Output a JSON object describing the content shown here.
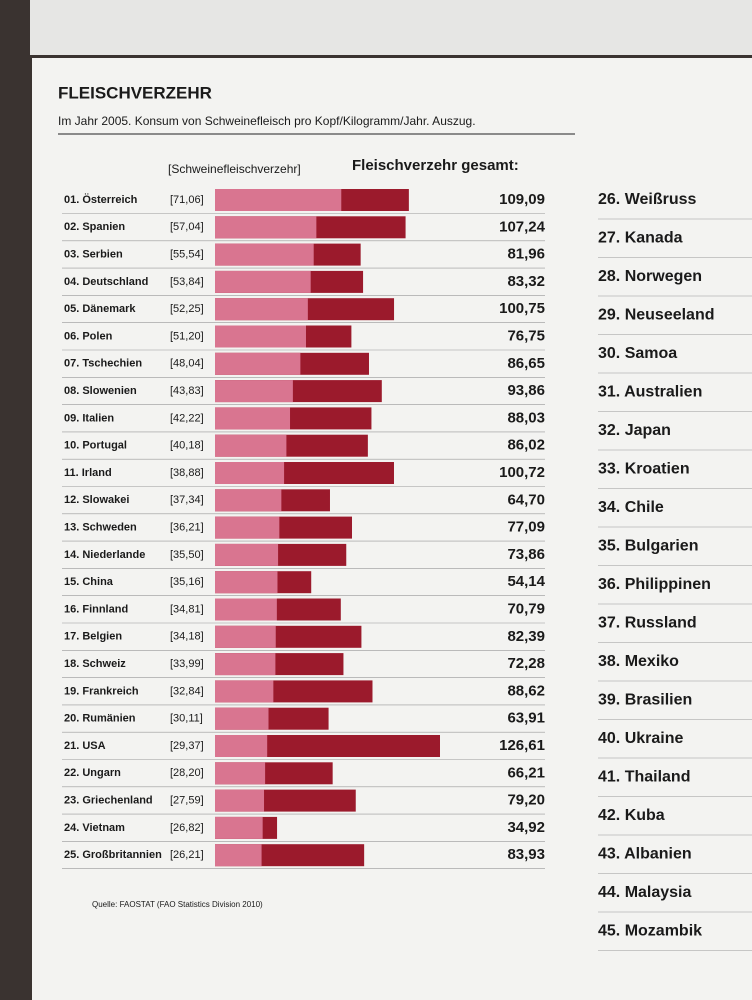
{
  "chart_data": {
    "type": "bar",
    "title": "FLEISCHVERZEHR",
    "subtitle": "Im Jahr 2005. Konsum von Schweinefleisch pro Kopf/Kilogramm/Jahr. Auszug.",
    "source": "Quelle: FAOSTAT (FAO Statistics Division 2010)",
    "categories": [
      "01. Österreich",
      "02. Spanien",
      "03. Serbien",
      "04. Deutschland",
      "05. Dänemark",
      "06. Polen",
      "07. Tschechien",
      "08. Slowenien",
      "09. Italien",
      "10. Portugal",
      "11. Irland",
      "12. Slowakei",
      "13. Schweden",
      "14. Niederlande",
      "15. China",
      "16. Finnland",
      "17. Belgien",
      "18. Schweiz",
      "19. Frankreich",
      "20. Rumänien",
      "21. USA",
      "22. Ungarn",
      "23. Griechenland",
      "24. Vietnam",
      "25. Großbritannien"
    ],
    "series": [
      {
        "name": "[Schweinefleischverzehr]",
        "color": "#d97590",
        "values": [
          71.06,
          57.04,
          55.54,
          53.84,
          52.25,
          51.2,
          48.04,
          43.83,
          42.22,
          40.18,
          38.88,
          37.34,
          36.21,
          35.5,
          35.16,
          34.81,
          34.18,
          33.99,
          32.84,
          30.11,
          29.37,
          28.2,
          27.59,
          26.82,
          26.21
        ],
        "value_labels": [
          "[71,06]",
          "[57,04]",
          "[55,54]",
          "[53,84]",
          "[52,25]",
          "[51,20]",
          "[48,04]",
          "[43,83]",
          "[42,22]",
          "[40,18]",
          "[38,88]",
          "[37,34]",
          "[36,21]",
          "[35,50]",
          "[35,16]",
          "[34,81]",
          "[34,18]",
          "[33,99]",
          "[32,84]",
          "[30,11]",
          "[29,37]",
          "[28,20]",
          "[27,59]",
          "[26,82]",
          "[26,21]"
        ]
      },
      {
        "name": "Fleischverzehr gesamt:",
        "color": "#9b1a2c",
        "values": [
          109.09,
          107.24,
          81.96,
          83.32,
          100.75,
          76.75,
          86.65,
          93.86,
          88.03,
          86.02,
          100.72,
          64.7,
          77.09,
          73.86,
          54.14,
          70.79,
          82.39,
          72.28,
          88.62,
          63.91,
          126.61,
          66.21,
          79.2,
          34.92,
          83.93
        ],
        "value_labels": [
          "109,09",
          "107,24",
          "81,96",
          "83,32",
          "100,75",
          "76,75",
          "86,65",
          "93,86",
          "88,03",
          "86,02",
          "100,72",
          "64,70",
          "77,09",
          "73,86",
          "54,14",
          "70,79",
          "82,39",
          "72,28",
          "88,62",
          "63,91",
          "126,61",
          "66,21",
          "79,20",
          "34,92",
          "83,93"
        ]
      }
    ],
    "more_categories": [
      "26. Weißruss",
      "27. Kanada",
      "28. Norwegen",
      "29. Neuseeland",
      "30. Samoa",
      "31. Australien",
      "32. Japan",
      "33. Kroatien",
      "34. Chile",
      "35. Bulgarien",
      "36. Philippinen",
      "37. Russland",
      "38. Mexiko",
      "39. Brasilien",
      "40. Ukraine",
      "41. Thailand",
      "42. Kuba",
      "43. Albanien",
      "44. Malaysia",
      "45. Mozambik"
    ]
  }
}
